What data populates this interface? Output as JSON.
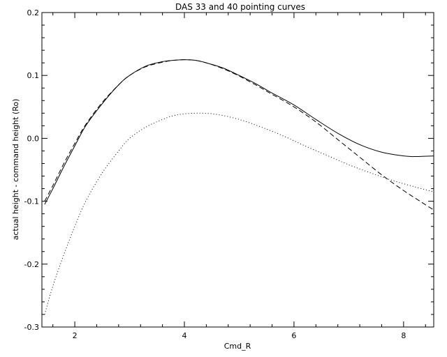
{
  "chart_data": {
    "type": "line",
    "title": "DAS 33 and 40  pointing curves",
    "xlabel": "Cmd_R",
    "ylabel": "actual height - command height (Ro)",
    "xlim": [
      1.4,
      8.55
    ],
    "ylim": [
      -0.3,
      0.2
    ],
    "xticks": [
      2,
      4,
      6,
      8
    ],
    "xtick_labels": [
      "2",
      "4",
      "6",
      "8"
    ],
    "yticks": [
      -0.3,
      -0.2,
      -0.1,
      0.0,
      0.1,
      0.2
    ],
    "ytick_labels": [
      "-0.3",
      "-0.2",
      "-0.1",
      "0.0",
      "0.1",
      "0.2"
    ],
    "grid": false,
    "series": [
      {
        "style": "solid",
        "x": [
          1.45,
          1.6,
          1.8,
          2.0,
          2.2,
          2.5,
          2.8,
          3.0,
          3.3,
          3.6,
          3.8,
          4.0,
          4.2,
          4.4,
          4.7,
          5.0,
          5.3,
          5.6,
          6.0,
          6.4,
          6.8,
          7.2,
          7.6,
          8.0,
          8.2,
          8.55
        ],
        "y": [
          -0.105,
          -0.08,
          -0.045,
          -0.012,
          0.02,
          0.055,
          0.085,
          0.1,
          0.115,
          0.122,
          0.124,
          0.125,
          0.124,
          0.12,
          0.112,
          0.1,
          0.087,
          0.072,
          0.053,
          0.03,
          0.008,
          -0.01,
          -0.022,
          -0.028,
          -0.029,
          -0.028
        ]
      },
      {
        "style": "dashed",
        "x": [
          1.45,
          1.6,
          1.8,
          2.0,
          2.2,
          2.5,
          2.8,
          3.0,
          3.3,
          3.6,
          3.8,
          4.0,
          4.2,
          4.4,
          4.7,
          5.0,
          5.3,
          5.6,
          6.0,
          6.4,
          6.8,
          7.2,
          7.6,
          8.0,
          8.3,
          8.55
        ],
        "y": [
          -0.1,
          -0.075,
          -0.04,
          -0.008,
          0.022,
          0.057,
          0.085,
          0.1,
          0.114,
          0.121,
          0.124,
          0.125,
          0.124,
          0.12,
          0.111,
          0.099,
          0.085,
          0.07,
          0.05,
          0.026,
          -0.002,
          -0.03,
          -0.058,
          -0.083,
          -0.1,
          -0.114
        ]
      },
      {
        "style": "dotted",
        "x": [
          1.45,
          1.6,
          1.8,
          2.0,
          2.2,
          2.5,
          2.8,
          3.0,
          3.3,
          3.6,
          3.8,
          4.0,
          4.3,
          4.6,
          5.0,
          5.4,
          5.8,
          6.2,
          6.6,
          7.0,
          7.4,
          7.8,
          8.2,
          8.55
        ],
        "y": [
          -0.28,
          -0.235,
          -0.185,
          -0.14,
          -0.1,
          -0.055,
          -0.02,
          0.0,
          0.018,
          0.03,
          0.036,
          0.039,
          0.04,
          0.038,
          0.03,
          0.018,
          0.004,
          -0.012,
          -0.027,
          -0.042,
          -0.055,
          -0.067,
          -0.077,
          -0.085
        ]
      }
    ]
  }
}
